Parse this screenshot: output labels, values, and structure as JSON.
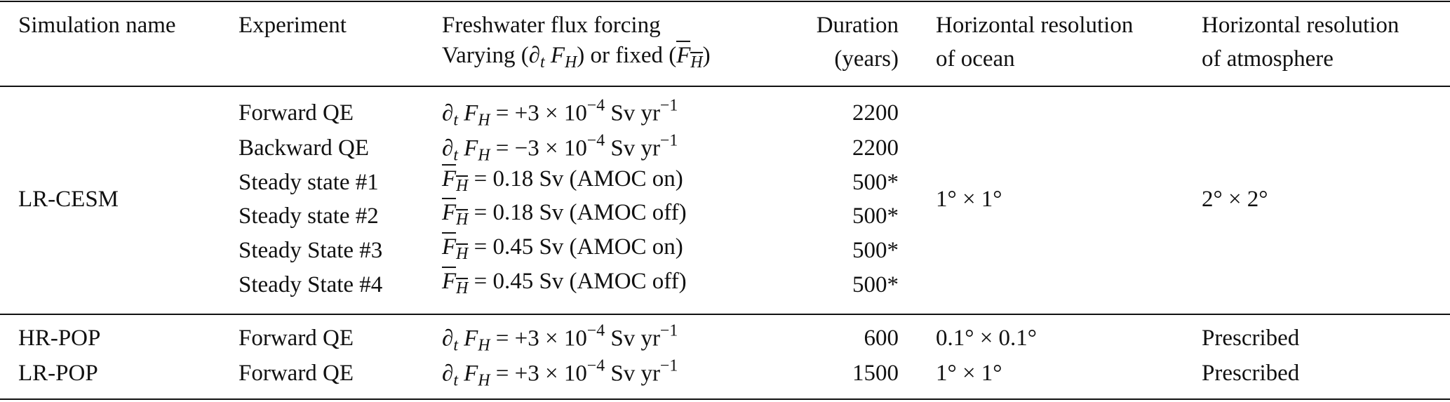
{
  "table": {
    "header": [
      {
        "lines": [
          [
            {
              "text": "Simulation name"
            }
          ]
        ]
      },
      {
        "lines": [
          [
            {
              "text": "Experiment"
            }
          ]
        ]
      },
      {
        "lines": [
          [
            {
              "text": "Freshwater flux forcing"
            }
          ],
          [
            {
              "text": "Varying ("
            },
            {
              "text": "∂"
            },
            {
              "text": "t",
              "style": "sub-i"
            },
            {
              "text": " "
            },
            {
              "text": "F",
              "style": "i"
            },
            {
              "text": "H",
              "style": "sub-i"
            },
            {
              "text": ") or fixed ("
            },
            {
              "text": "F",
              "style": "over-i"
            },
            {
              "text": "H",
              "style": "over-sub-i"
            },
            {
              "text": ")"
            }
          ]
        ]
      },
      {
        "lines": [
          [
            {
              "text": "Duration"
            }
          ],
          [
            {
              "text": "(years)"
            }
          ]
        ]
      },
      {
        "lines": [
          [
            {
              "text": "Horizontal resolution"
            }
          ],
          [
            {
              "text": "of ocean"
            }
          ]
        ]
      },
      {
        "lines": [
          [
            {
              "text": "Horizontal resolution"
            }
          ],
          [
            {
              "text": "of atmosphere"
            }
          ]
        ]
      }
    ],
    "groups": [
      {
        "simulation": "LR-CESM",
        "ocean": "1° × 1°",
        "atmosphere": "2° × 2°",
        "experiments": [
          {
            "name": "Forward QE",
            "duration": 2200,
            "forcing": [
              {
                "text": "∂"
              },
              {
                "text": "t",
                "style": "sub-i"
              },
              {
                "text": " "
              },
              {
                "text": "F",
                "style": "i"
              },
              {
                "text": "H",
                "style": "sub-i"
              },
              {
                "text": " = +3 × 10"
              },
              {
                "text": "−4",
                "style": "sup"
              },
              {
                "text": " Sv yr"
              },
              {
                "text": "−1",
                "style": "sup"
              }
            ]
          },
          {
            "name": "Backward QE",
            "duration": 2200,
            "forcing": [
              {
                "text": "∂"
              },
              {
                "text": "t",
                "style": "sub-i"
              },
              {
                "text": " "
              },
              {
                "text": "F",
                "style": "i"
              },
              {
                "text": "H",
                "style": "sub-i"
              },
              {
                "text": " = −3 × 10"
              },
              {
                "text": "−4",
                "style": "sup"
              },
              {
                "text": " Sv yr"
              },
              {
                "text": "−1",
                "style": "sup"
              }
            ]
          },
          {
            "name": "Steady state #1",
            "duration": "500*",
            "forcing": [
              {
                "text": "F",
                "style": "over-i"
              },
              {
                "text": "H",
                "style": "over-sub-i"
              },
              {
                "text": " = 0.18 Sv (AMOC on)"
              }
            ]
          },
          {
            "name": "Steady state #2",
            "duration": "500*",
            "forcing": [
              {
                "text": "F",
                "style": "over-i"
              },
              {
                "text": "H",
                "style": "over-sub-i"
              },
              {
                "text": " = 0.18 Sv (AMOC off)"
              }
            ]
          },
          {
            "name": "Steady State #3",
            "duration": "500*",
            "forcing": [
              {
                "text": "F",
                "style": "over-i"
              },
              {
                "text": "H",
                "style": "over-sub-i"
              },
              {
                "text": " = 0.45 Sv (AMOC on)"
              }
            ]
          },
          {
            "name": "Steady State #4",
            "duration": "500*",
            "forcing": [
              {
                "text": "F",
                "style": "over-i"
              },
              {
                "text": "H",
                "style": "over-sub-i"
              },
              {
                "text": " = 0.45 Sv (AMOC off)"
              }
            ]
          }
        ]
      },
      {
        "simulation": "HR-POP",
        "ocean": "0.1° × 0.1°",
        "atmosphere": "Prescribed",
        "experiments": [
          {
            "name": "Forward QE",
            "duration": 600,
            "forcing": [
              {
                "text": "∂"
              },
              {
                "text": "t",
                "style": "sub-i"
              },
              {
                "text": " "
              },
              {
                "text": "F",
                "style": "i"
              },
              {
                "text": "H",
                "style": "sub-i"
              },
              {
                "text": " = +3 × 10"
              },
              {
                "text": "−4",
                "style": "sup"
              },
              {
                "text": " Sv yr"
              },
              {
                "text": "−1",
                "style": "sup"
              }
            ]
          }
        ]
      },
      {
        "simulation": "LR-POP",
        "ocean": "1° × 1°",
        "atmosphere": "Prescribed",
        "experiments": [
          {
            "name": "Forward QE",
            "duration": 1500,
            "forcing": [
              {
                "text": "∂"
              },
              {
                "text": "t",
                "style": "sub-i"
              },
              {
                "text": " "
              },
              {
                "text": "F",
                "style": "i"
              },
              {
                "text": "H",
                "style": "sub-i"
              },
              {
                "text": " = +3 × 10"
              },
              {
                "text": "−4",
                "style": "sup"
              },
              {
                "text": " Sv yr"
              },
              {
                "text": "−1",
                "style": "sup"
              }
            ]
          }
        ]
      }
    ]
  }
}
